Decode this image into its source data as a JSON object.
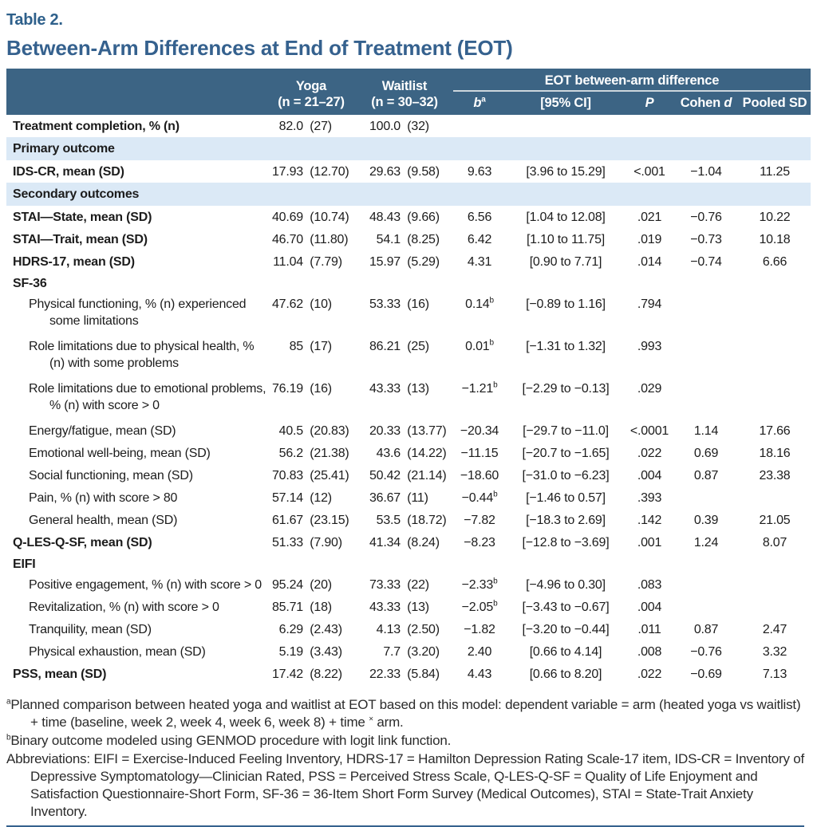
{
  "page": {
    "table_label": "Table 2.",
    "title": "Between-Arm Differences at End of Treatment (EOT)"
  },
  "colors": {
    "header_bg": "#3c6484",
    "band_bg": "#dbe9f6",
    "title_blue": "#35618e",
    "rule_blue": "#35618e"
  },
  "table": {
    "header": {
      "yoga_line1": "Yoga",
      "yoga_line2": "(n = 21–27)",
      "waitlist_line1": "Waitlist",
      "waitlist_line2": "(n = 30–32)",
      "span_label": "EOT between-arm difference",
      "sub_b": "b",
      "sub_b_sup": "a",
      "sub_ci": "[95% CI]",
      "sub_p": "P",
      "sub_cohen_word": "Cohen",
      "sub_cohen_d": "d",
      "sub_pooled": "Pooled SD"
    },
    "rows": [
      {
        "type": "data",
        "label": "Treatment completion, % (n)",
        "bold": true,
        "indent": false,
        "yoga_mean": "82.0",
        "yoga_sd": "(27)",
        "wait_mean": "100.0",
        "wait_sd": "(32)",
        "b": "",
        "b_sup": "",
        "ci": "",
        "p": "",
        "cohen": "",
        "pooled": ""
      },
      {
        "type": "band",
        "label": "Primary outcome"
      },
      {
        "type": "data",
        "label": "IDS-CR, mean (SD)",
        "bold": true,
        "indent": false,
        "yoga_mean": "17.93",
        "yoga_sd": "(12.70)",
        "wait_mean": "29.63",
        "wait_sd": "(9.58)",
        "b": "9.63",
        "b_sup": "",
        "ci": "[3.96 to 15.29]",
        "p": "<.001",
        "cohen": "−1.04",
        "pooled": "11.25"
      },
      {
        "type": "band",
        "label": "Secondary outcomes"
      },
      {
        "type": "data",
        "label": "STAI—State, mean (SD)",
        "bold": true,
        "indent": false,
        "yoga_mean": "40.69",
        "yoga_sd": "(10.74)",
        "wait_mean": "48.43",
        "wait_sd": "(9.66)",
        "b": "6.56",
        "b_sup": "",
        "ci": "[1.04 to 12.08]",
        "p": ".021",
        "cohen": "−0.76",
        "pooled": "10.22"
      },
      {
        "type": "data",
        "label": "STAI—Trait, mean (SD)",
        "bold": true,
        "indent": false,
        "yoga_mean": "46.70",
        "yoga_sd": "(11.80)",
        "wait_mean": "54.1",
        "wait_sd": "(8.25)",
        "b": "6.42",
        "b_sup": "",
        "ci": "[1.10 to 11.75]",
        "p": ".019",
        "cohen": "−0.73",
        "pooled": "10.18"
      },
      {
        "type": "data",
        "label": "HDRS-17, mean (SD)",
        "bold": true,
        "indent": false,
        "yoga_mean": "11.04",
        "yoga_sd": "(7.79)",
        "wait_mean": "15.97",
        "wait_sd": "(5.29)",
        "b": "4.31",
        "b_sup": "",
        "ci": "[0.90 to 7.71]",
        "p": ".014",
        "cohen": "−0.74",
        "pooled": "6.66"
      },
      {
        "type": "group",
        "label": "SF-36"
      },
      {
        "type": "data",
        "label": "Physical functioning, % (n) experienced some limitations",
        "bold": false,
        "indent": true,
        "two_line": true,
        "yoga_mean": "47.62",
        "yoga_sd": "(10)",
        "wait_mean": "53.33",
        "wait_sd": "(16)",
        "b": "0.14",
        "b_sup": "b",
        "ci": "[−0.89 to 1.16]",
        "p": ".794",
        "cohen": "",
        "pooled": ""
      },
      {
        "type": "data",
        "label": "Role limitations due to physical health, % (n) with some problems",
        "bold": false,
        "indent": true,
        "two_line": true,
        "yoga_mean": "85",
        "yoga_sd": "(17)",
        "wait_mean": "86.21",
        "wait_sd": "(25)",
        "b": "0.01",
        "b_sup": "b",
        "ci": "[−1.31 to 1.32]",
        "p": ".993",
        "cohen": "",
        "pooled": ""
      },
      {
        "type": "data",
        "label": "Role limitations due to emotional problems, % (n) with score > 0",
        "bold": false,
        "indent": true,
        "two_line": true,
        "yoga_mean": "76.19",
        "yoga_sd": "(16)",
        "wait_mean": "43.33",
        "wait_sd": "(13)",
        "b": "−1.21",
        "b_sup": "b",
        "ci": "[−2.29 to −0.13]",
        "p": ".029",
        "cohen": "",
        "pooled": ""
      },
      {
        "type": "data",
        "label": "Energy/fatigue, mean (SD)",
        "bold": false,
        "indent": true,
        "yoga_mean": "40.5",
        "yoga_sd": "(20.83)",
        "wait_mean": "20.33",
        "wait_sd": "(13.77)",
        "b": "−20.34",
        "b_sup": "",
        "ci": "[−29.7 to −11.0]",
        "p": "<.0001",
        "cohen": "1.14",
        "pooled": "17.66"
      },
      {
        "type": "data",
        "label": "Emotional well-being, mean (SD)",
        "bold": false,
        "indent": true,
        "yoga_mean": "56.2",
        "yoga_sd": "(21.38)",
        "wait_mean": "43.6",
        "wait_sd": "(14.22)",
        "b": "−11.15",
        "b_sup": "",
        "ci": "[−20.7 to −1.65]",
        "p": ".022",
        "cohen": "0.69",
        "pooled": "18.16"
      },
      {
        "type": "data",
        "label": "Social functioning, mean (SD)",
        "bold": false,
        "indent": true,
        "yoga_mean": "70.83",
        "yoga_sd": "(25.41)",
        "wait_mean": "50.42",
        "wait_sd": "(21.14)",
        "b": "−18.60",
        "b_sup": "",
        "ci": "[−31.0 to −6.23]",
        "p": ".004",
        "cohen": "0.87",
        "pooled": "23.38"
      },
      {
        "type": "data",
        "label": "Pain, % (n) with score > 80",
        "bold": false,
        "indent": true,
        "yoga_mean": "57.14",
        "yoga_sd": "(12)",
        "wait_mean": "36.67",
        "wait_sd": "(11)",
        "b": "−0.44",
        "b_sup": "b",
        "ci": "[−1.46 to 0.57]",
        "p": ".393",
        "cohen": "",
        "pooled": ""
      },
      {
        "type": "data",
        "label": "General health, mean (SD)",
        "bold": false,
        "indent": true,
        "yoga_mean": "61.67",
        "yoga_sd": "(23.15)",
        "wait_mean": "53.5",
        "wait_sd": "(18.72)",
        "b": "−7.82",
        "b_sup": "",
        "ci": "[−18.3 to 2.69]",
        "p": ".142",
        "cohen": "0.39",
        "pooled": "21.05"
      },
      {
        "type": "data",
        "label": "Q-LES-Q-SF, mean (SD)",
        "bold": true,
        "indent": false,
        "yoga_mean": "51.33",
        "yoga_sd": "(7.90)",
        "wait_mean": "41.34",
        "wait_sd": "(8.24)",
        "b": "−8.23",
        "b_sup": "",
        "ci": "[−12.8 to −3.69]",
        "p": ".001",
        "cohen": "1.24",
        "pooled": "8.07"
      },
      {
        "type": "group",
        "label": "EIFI"
      },
      {
        "type": "data",
        "label": "Positive engagement, % (n) with score > 0",
        "bold": false,
        "indent": true,
        "yoga_mean": "95.24",
        "yoga_sd": "(20)",
        "wait_mean": "73.33",
        "wait_sd": "(22)",
        "b": "−2.33",
        "b_sup": "b",
        "ci": "[−4.96 to 0.30]",
        "p": ".083",
        "cohen": "",
        "pooled": ""
      },
      {
        "type": "data",
        "label": "Revitalization, % (n) with score > 0",
        "bold": false,
        "indent": true,
        "yoga_mean": "85.71",
        "yoga_sd": "(18)",
        "wait_mean": "43.33",
        "wait_sd": "(13)",
        "b": "−2.05",
        "b_sup": "b",
        "ci": "[−3.43 to −0.67]",
        "p": ".004",
        "cohen": "",
        "pooled": ""
      },
      {
        "type": "data",
        "label": "Tranquility, mean (SD)",
        "bold": false,
        "indent": true,
        "yoga_mean": "6.29",
        "yoga_sd": "(2.43)",
        "wait_mean": "4.13",
        "wait_sd": "(2.50)",
        "b": "−1.82",
        "b_sup": "",
        "ci": "[−3.20 to −0.44]",
        "p": ".011",
        "cohen": "0.87",
        "pooled": "2.47"
      },
      {
        "type": "data",
        "label": "Physical exhaustion, mean (SD)",
        "bold": false,
        "indent": true,
        "yoga_mean": "5.19",
        "yoga_sd": "(3.43)",
        "wait_mean": "7.7",
        "wait_sd": "(3.20)",
        "b": "2.40",
        "b_sup": "",
        "ci": "[0.66 to 4.14]",
        "p": ".008",
        "cohen": "−0.76",
        "pooled": "3.32"
      },
      {
        "type": "data",
        "label": "PSS, mean (SD)",
        "bold": true,
        "indent": false,
        "yoga_mean": "17.42",
        "yoga_sd": "(8.22)",
        "wait_mean": "22.33",
        "wait_sd": "(5.84)",
        "b": "4.43",
        "b_sup": "",
        "ci": "[0.66 to 8.20]",
        "p": ".022",
        "cohen": "−0.69",
        "pooled": "7.13"
      }
    ]
  },
  "footnotes": [
    {
      "sup": "a",
      "text": "Planned comparison between heated yoga and waitlist at EOT based on this model: dependent variable = arm (heated yoga vs waitlist) + time (baseline, week 2, week 4, week 6, week 8) + time × arm."
    },
    {
      "sup": "b",
      "text": "Binary outcome modeled using GENMOD procedure with logit link function."
    },
    {
      "sup": "",
      "text": "Abbreviations: EIFI = Exercise-Induced Feeling Inventory, HDRS-17 = Hamilton Depression Rating Scale-17 item, IDS-CR = Inventory of Depressive Symptomatology—Clinician Rated, PSS = Perceived Stress Scale, Q-LES-Q-SF = Quality of Life Enjoyment and Satisfaction Questionnaire-Short Form, SF-36 = 36-Item Short Form Survey (Medical Outcomes), STAI = State-Trait Anxiety Inventory."
    }
  ]
}
